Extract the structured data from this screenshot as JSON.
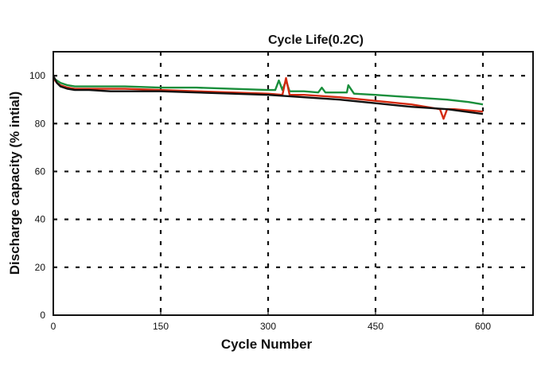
{
  "chart_data": {
    "type": "line",
    "title": "Cycle Life(0.2C)",
    "xlabel": "Cycle Number",
    "ylabel": "Discharge capacity (% intial)",
    "xlim": [
      0,
      670
    ],
    "ylim": [
      0,
      110
    ],
    "x_ticks": [
      "0",
      "150",
      "300",
      "450",
      "600"
    ],
    "x_tick_values": [
      0,
      150,
      300,
      450,
      600
    ],
    "y_ticks": [
      "0",
      "20",
      "40",
      "60",
      "80",
      "100"
    ],
    "y_tick_values": [
      0,
      20,
      40,
      60,
      80,
      100
    ],
    "grid": "dashed",
    "legend": "none",
    "series": [
      {
        "color": "#1a8f3c",
        "x": [
          0,
          5,
          10,
          20,
          30,
          50,
          80,
          100,
          150,
          200,
          250,
          300,
          310,
          315,
          320,
          325,
          330,
          350,
          370,
          375,
          380,
          410,
          412,
          420,
          450,
          500,
          550,
          580,
          600
        ],
        "y": [
          99,
          98,
          97,
          96,
          95.5,
          95.5,
          95.5,
          95.5,
          95,
          95,
          94.5,
          94,
          94,
          98,
          94,
          98,
          93.5,
          93.5,
          93,
          95,
          93,
          93,
          96,
          92.5,
          92,
          91,
          90,
          89,
          88
        ]
      },
      {
        "color": "#d42a10",
        "x": [
          0,
          5,
          10,
          20,
          30,
          50,
          80,
          100,
          150,
          200,
          250,
          300,
          320,
          325,
          330,
          350,
          400,
          450,
          500,
          540,
          545,
          550,
          560,
          600
        ],
        "y": [
          99,
          97,
          96,
          95,
          94.5,
          94.5,
          94.5,
          94.5,
          94,
          93.5,
          93,
          92.5,
          92,
          99,
          92,
          92,
          91,
          89.5,
          88,
          86,
          82,
          86,
          86,
          85
        ]
      },
      {
        "color": "#111111",
        "x": [
          0,
          5,
          10,
          20,
          30,
          50,
          80,
          100,
          150,
          200,
          250,
          300,
          350,
          400,
          450,
          500,
          550,
          600
        ],
        "y": [
          100,
          97,
          95.5,
          94.5,
          94,
          94,
          93.5,
          93.5,
          93.5,
          93,
          92.5,
          92,
          91,
          90,
          88.5,
          87,
          86,
          84
        ]
      }
    ]
  }
}
